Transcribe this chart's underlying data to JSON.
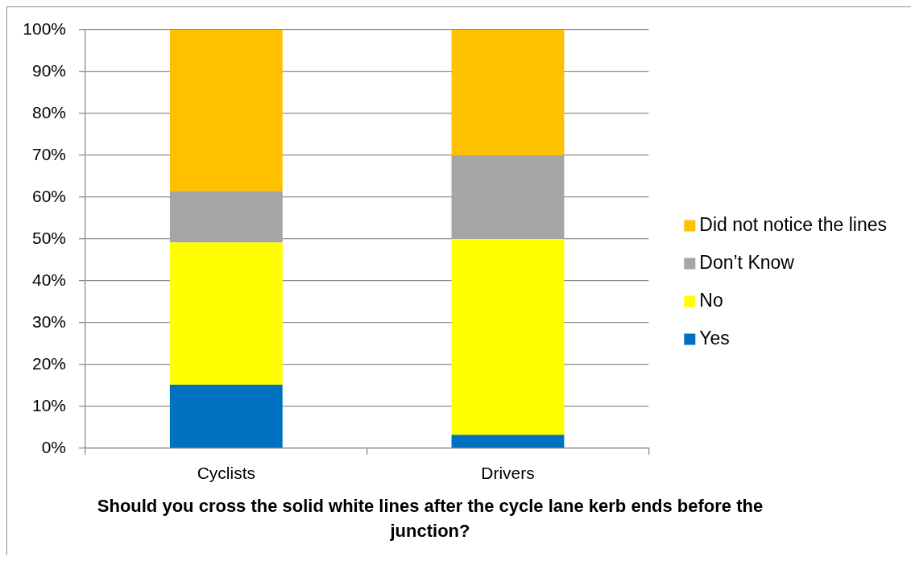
{
  "chart_data": {
    "type": "bar",
    "xlabel": "Should you cross the solid white lines after the cycle lane kerb ends before the junction?",
    "categories": [
      "Cyclists",
      "Drivers"
    ],
    "series": [
      {
        "name": "Yes",
        "color": "#0070c0",
        "values": [
          15.2,
          3.2
        ]
      },
      {
        "name": "No",
        "color": "#ffff00",
        "values": [
          34.0,
          46.8
        ]
      },
      {
        "name": "Don’t Know",
        "color": "#a5a5a5",
        "values": [
          12.3,
          20.0
        ]
      },
      {
        "name": "Did not notice the lines",
        "color": "#ffc000",
        "values": [
          38.5,
          30.0
        ]
      }
    ],
    "stacked": true,
    "ylim": [
      0,
      100
    ],
    "yticks": [
      {
        "value": 0,
        "label": "0%"
      },
      {
        "value": 10,
        "label": "10%"
      },
      {
        "value": 20,
        "label": "20%"
      },
      {
        "value": 30,
        "label": "30%"
      },
      {
        "value": 40,
        "label": "40%"
      },
      {
        "value": 50,
        "label": "50%"
      },
      {
        "value": 60,
        "label": "60%"
      },
      {
        "value": 70,
        "label": "70%"
      },
      {
        "value": 80,
        "label": "80%"
      },
      {
        "value": 90,
        "label": "90%"
      },
      {
        "value": 100,
        "label": "100%"
      }
    ],
    "grid": "y",
    "legend": "right"
  }
}
